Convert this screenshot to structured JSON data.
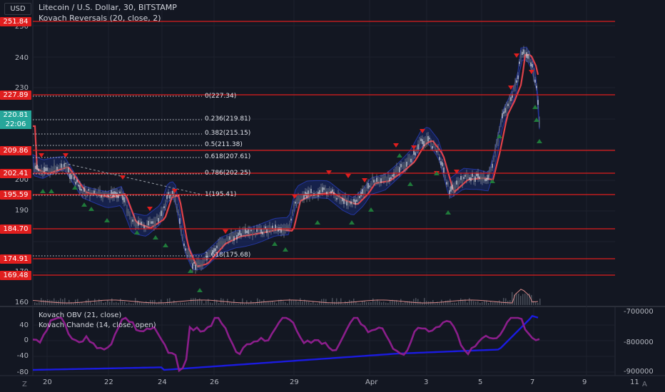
{
  "header": {
    "symbol": "Litecoin / U.S. Dollar, 30, BITSTAMP",
    "indicator": "Kovach Reversals (20, close, 2)",
    "currency": "USD"
  },
  "price_axis": [
    "250",
    "240",
    "230",
    "200",
    "190",
    "170",
    "160"
  ],
  "price_levels": [
    "251.84",
    "227.89",
    "209.86",
    "202.41",
    "195.59",
    "184.70",
    "174.91",
    "169.48"
  ],
  "current_price": {
    "value": "220.81",
    "countdown": "22:06"
  },
  "fib_levels": [
    "0(227.34)",
    "0.236(219.81)",
    "0.382(215.15)",
    "0.5(211.38)",
    "0.618(207.61)",
    "0.786(202.25)",
    "1(195.41)",
    "1.618(175.68)"
  ],
  "time_axis": [
    "20",
    "22",
    "24",
    "26",
    "29",
    "Apr",
    "3",
    "5",
    "7",
    "9",
    "11"
  ],
  "sub_panel": {
    "obv_label": "Kovach OBV (21, close)",
    "chande_label": "Kovach Chande (14, close, open)",
    "left_axis": [
      "40",
      "0",
      "-40",
      "-80"
    ],
    "right_axis": [
      "-700000",
      "-800000",
      "-900000"
    ]
  },
  "corner": {
    "left": "Z",
    "right": "A"
  },
  "colors": {
    "bg": "#131722",
    "level_line": "#e01e1e",
    "current_tag": "#26a69a",
    "obv": "#1b1be0",
    "chande": "#8b1e8b",
    "bull": "#26a69a",
    "bear": "#e01e1e"
  }
}
